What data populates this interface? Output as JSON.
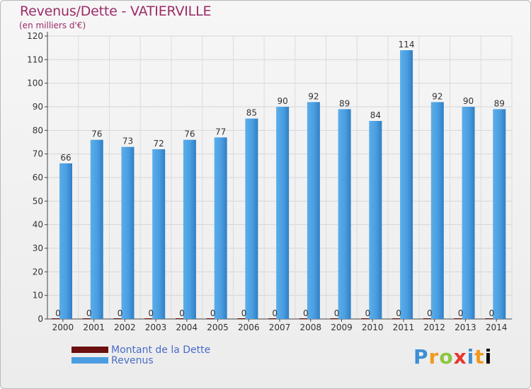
{
  "title": "Revenus/Dette - VATIERVILLE",
  "subtitle": "(en milliers d'€)",
  "logo": "Proxiti",
  "chart_data": {
    "type": "bar",
    "categories": [
      "2000",
      "2001",
      "2002",
      "2003",
      "2004",
      "2005",
      "2006",
      "2007",
      "2008",
      "2009",
      "2010",
      "2011",
      "2012",
      "2013",
      "2014"
    ],
    "series": [
      {
        "name": "Montant de la Dette",
        "values": [
          0,
          0,
          0,
          0,
          0,
          0,
          0,
          0,
          0,
          0,
          0,
          0,
          0,
          0,
          0
        ],
        "color": "#6b0f0f"
      },
      {
        "name": "Revenus",
        "values": [
          66,
          76,
          73,
          72,
          76,
          77,
          85,
          90,
          92,
          89,
          84,
          114,
          92,
          90,
          89
        ],
        "color": "#4a9de0"
      }
    ],
    "ylim": [
      0,
      120
    ],
    "yticks": [
      0,
      10,
      20,
      30,
      40,
      50,
      60,
      70,
      80,
      90,
      100,
      110,
      120
    ],
    "grid": true,
    "legend": "bottom-left"
  }
}
